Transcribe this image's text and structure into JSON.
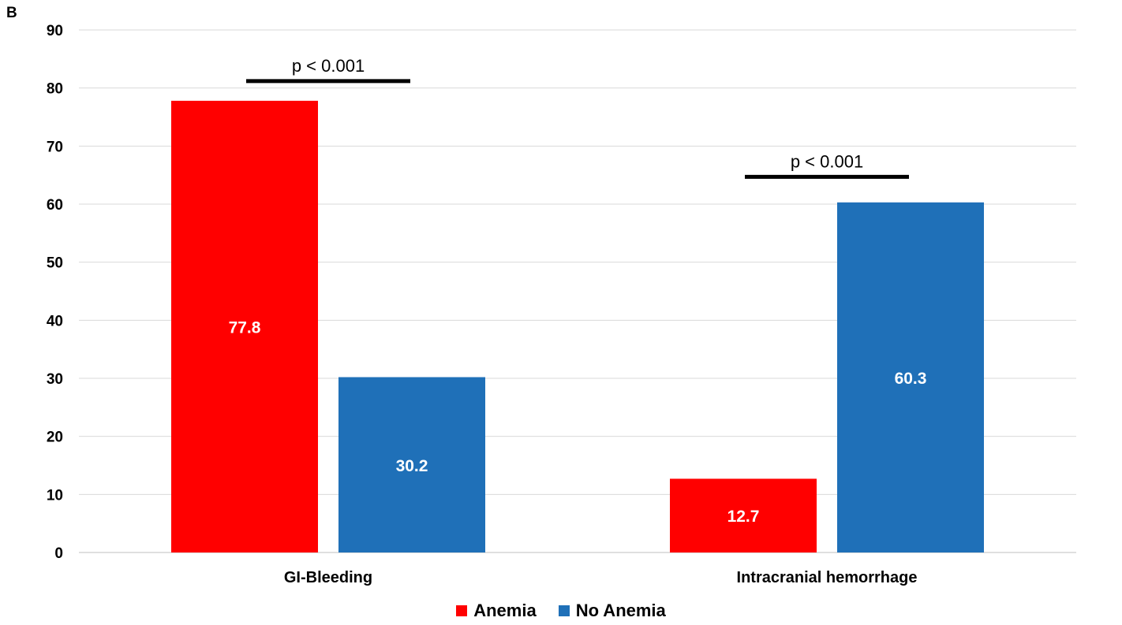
{
  "chart_data": {
    "type": "bar",
    "panel_label": "B",
    "title": "",
    "xlabel": "",
    "ylabel": "",
    "ylim": [
      0,
      90
    ],
    "yticks": [
      0,
      10,
      20,
      30,
      40,
      50,
      60,
      70,
      80,
      90
    ],
    "grid": true,
    "legend_position": "bottom",
    "categories": [
      "GI-Bleeding",
      "Intracranial hemorrhage"
    ],
    "series": [
      {
        "name": "Anemia",
        "color": "#ff0000",
        "values": [
          77.8,
          12.7
        ]
      },
      {
        "name": "No Anemia",
        "color": "#1f70b8",
        "values": [
          30.2,
          60.3
        ]
      }
    ],
    "data_labels": [
      [
        "77.8",
        "12.7"
      ],
      [
        "30.2",
        "60.3"
      ]
    ],
    "annotations": [
      {
        "category": "GI-Bleeding",
        "text": "p < 0.001",
        "y": 81.2
      },
      {
        "category": "Intracranial hemorrhage",
        "text": "p < 0.001",
        "y": 64.7
      }
    ]
  }
}
